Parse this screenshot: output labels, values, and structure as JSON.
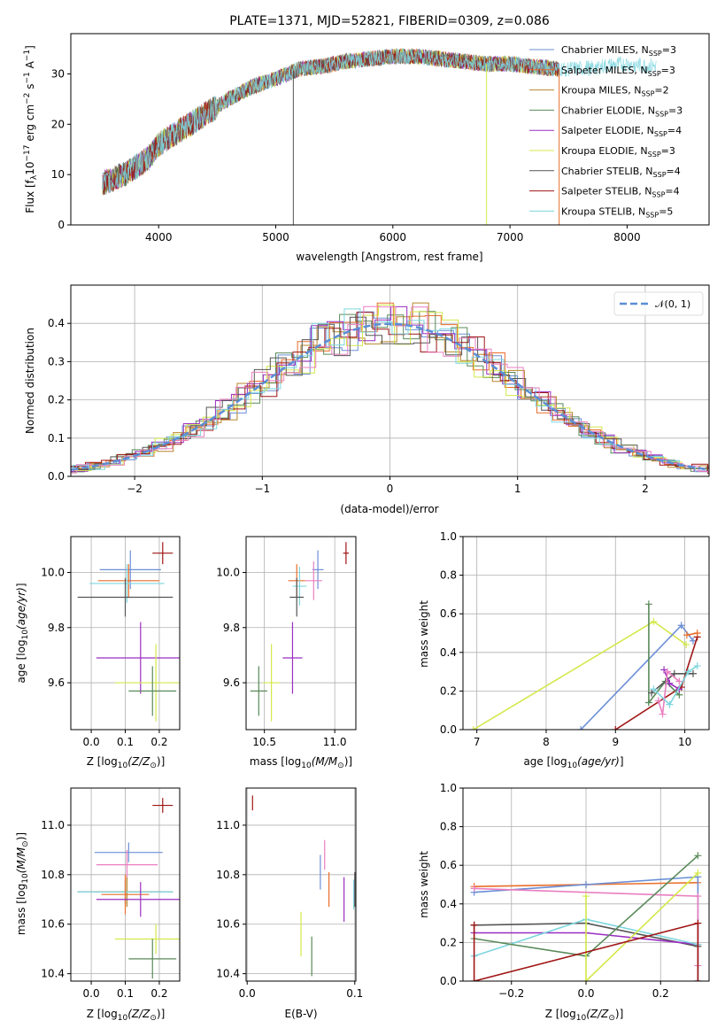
{
  "figure": {
    "title": "PLATE=1371, MJD=52821, FIBERID=0309, z=0.086"
  },
  "colors": {
    "Chabrier MILES": "#6b8fd6",
    "Salpeter MILES": "#e96e2a",
    "Kroupa MILES": "#b8862b",
    "Chabrier ELODIE": "#5a8a5a",
    "Salpeter ELODIE": "#9a2ec2",
    "Kroupa ELODIE": "#d4e84a",
    "Chabrier STELIB": "#555555",
    "Salpeter STELIB": "#a01515",
    "Kroupa STELIB": "#7ed6df",
    "pink": "#e97fc0",
    "gaussian": "#5b8ed6"
  },
  "chart_data": [
    {
      "id": "spectrum",
      "type": "line",
      "xlabel": "wavelength [Angstrom, rest frame]",
      "ylabel": "Flux [f",
      "xlim": [
        3250,
        8700
      ],
      "ylim": [
        0,
        38
      ],
      "xticks": [
        "4000",
        "5000",
        "6000",
        "7000",
        "8000"
      ],
      "yticks": [
        "0",
        "10",
        "20",
        "30"
      ],
      "legend_position": "right",
      "series": [
        {
          "name": "Chabrier MILES",
          "nssp": "3"
        },
        {
          "name": "Salpeter MILES",
          "nssp": "3"
        },
        {
          "name": "Kroupa MILES",
          "nssp": "2"
        },
        {
          "name": "Chabrier ELODIE",
          "nssp": "3"
        },
        {
          "name": "Salpeter ELODIE",
          "nssp": "4"
        },
        {
          "name": "Kroupa ELODIE",
          "nssp": "3"
        },
        {
          "name": "Chabrier STELIB",
          "nssp": "4"
        },
        {
          "name": "Salpeter STELIB",
          "nssp": "4"
        },
        {
          "name": "Kroupa STELIB",
          "nssp": "5"
        }
      ],
      "continuum": {
        "x": [
          3500,
          3700,
          3900,
          4000,
          4200,
          4400,
          4600,
          4800,
          5000,
          5200,
          5400,
          5600,
          5800,
          6000,
          6200,
          6400,
          6600,
          6800,
          7000,
          7200,
          7400,
          7600,
          7800,
          8000,
          8200
        ],
        "y": [
          8,
          10,
          13,
          16,
          19,
          22,
          25,
          27.5,
          29,
          31,
          31.5,
          32.5,
          33,
          33.5,
          33.5,
          33,
          32.5,
          32,
          32,
          31.5,
          31,
          31,
          31.5,
          32,
          31.5
        ]
      }
    },
    {
      "id": "residuals",
      "type": "line",
      "xlabel": "(data-model)/error",
      "ylabel": "Normed distribution",
      "xlim": [
        -2.5,
        2.5
      ],
      "ylim": [
        0,
        0.5
      ],
      "xticks": [
        "−2",
        "−1",
        "0",
        "1",
        "2"
      ],
      "yticks": [
        "0.0",
        "0.1",
        "0.2",
        "0.3",
        "0.4"
      ],
      "legend": "𝒩(0, 1)",
      "legend_position": "top-right",
      "grid": true
    },
    {
      "id": "age-vs-Z",
      "type": "scatter",
      "xlabel": "Z [log",
      "ylabel": "age  [log",
      "xlim": [
        -0.06,
        0.26
      ],
      "ylim": [
        9.43,
        10.13
      ],
      "xticks": [
        "0.0",
        "0.1",
        "0.2"
      ],
      "yticks": [
        "9.6",
        "9.8",
        "10.0"
      ],
      "grid": true,
      "points": [
        {
          "x": 0.115,
          "y": 10.01,
          "xerr": 0.09,
          "yerr": 0.07,
          "c": "Chabrier MILES"
        },
        {
          "x": 0.11,
          "y": 9.97,
          "xerr": 0.09,
          "yerr": 0.06,
          "c": "Salpeter MILES"
        },
        {
          "x": 0.105,
          "y": 9.96,
          "xerr": 0.11,
          "yerr": 0.07,
          "c": "Kroupa STELIB"
        },
        {
          "x": 0.1,
          "y": 9.91,
          "xerr": 0.14,
          "yerr": 0.07,
          "c": "Chabrier STELIB"
        },
        {
          "x": 0.145,
          "y": 9.69,
          "xerr": 0.13,
          "yerr": 0.13,
          "c": "Salpeter ELODIE"
        },
        {
          "x": 0.19,
          "y": 9.6,
          "xerr": 0.12,
          "yerr": 0.14,
          "c": "Kroupa ELODIE"
        },
        {
          "x": 0.18,
          "y": 9.57,
          "xerr": 0.07,
          "yerr": 0.09,
          "c": "Chabrier ELODIE"
        },
        {
          "x": 0.21,
          "y": 10.07,
          "xerr": 0.03,
          "yerr": 0.04,
          "c": "Salpeter STELIB"
        }
      ]
    },
    {
      "id": "age-vs-mass",
      "type": "scatter",
      "xlabel": "mass [log",
      "ylabel": "",
      "xlim": [
        10.37,
        11.15
      ],
      "ylim": [
        9.43,
        10.13
      ],
      "xticks": [
        "10.5",
        "11.0"
      ],
      "yticks": [
        "9.6",
        "9.8",
        "10.0"
      ],
      "grid": true,
      "points": [
        {
          "x": 10.88,
          "y": 10.01,
          "xerr": 0.04,
          "yerr": 0.07,
          "c": "Chabrier MILES"
        },
        {
          "x": 10.73,
          "y": 9.97,
          "xerr": 0.06,
          "yerr": 0.06,
          "c": "Salpeter MILES"
        },
        {
          "x": 10.85,
          "y": 9.97,
          "xerr": 0.06,
          "yerr": 0.07,
          "c": "pink"
        },
        {
          "x": 10.75,
          "y": 9.95,
          "xerr": 0.05,
          "yerr": 0.07,
          "c": "Kroupa STELIB"
        },
        {
          "x": 10.73,
          "y": 9.91,
          "xerr": 0.05,
          "yerr": 0.07,
          "c": "Chabrier STELIB"
        },
        {
          "x": 10.7,
          "y": 9.69,
          "xerr": 0.07,
          "yerr": 0.13,
          "c": "Salpeter ELODIE"
        },
        {
          "x": 10.55,
          "y": 9.6,
          "xerr": 0.06,
          "yerr": 0.14,
          "c": "Kroupa ELODIE"
        },
        {
          "x": 10.46,
          "y": 9.57,
          "xerr": 0.06,
          "yerr": 0.09,
          "c": "Chabrier ELODIE"
        },
        {
          "x": 11.08,
          "y": 10.07,
          "xerr": 0.02,
          "yerr": 0.04,
          "c": "Salpeter STELIB"
        }
      ]
    },
    {
      "id": "weight-vs-age",
      "type": "line",
      "xlabel": "age  [log",
      "ylabel": "mass weight",
      "xlim": [
        6.8,
        10.35
      ],
      "ylim": [
        0,
        1
      ],
      "xticks": [
        "7",
        "8",
        "9",
        "10"
      ],
      "yticks": [
        "0.0",
        "0.2",
        "0.4",
        "0.6",
        "0.8",
        "1.0"
      ],
      "grid": true,
      "series": [
        {
          "c": "Kroupa ELODIE",
          "x": [
            6.95,
            9.55,
            10.02
          ],
          "y": [
            0.0,
            0.56,
            0.44
          ]
        },
        {
          "c": "Chabrier MILES",
          "x": [
            8.5,
            9.95,
            10.12
          ],
          "y": [
            0.0,
            0.54,
            0.46
          ]
        },
        {
          "c": "Salpeter STELIB",
          "x": [
            9.0,
            9.95,
            10.18
          ],
          "y": [
            0.0,
            0.22,
            0.48
          ]
        },
        {
          "c": "Salpeter MILES",
          "x": [
            10.03,
            10.18
          ],
          "y": [
            0.49,
            0.5
          ]
        },
        {
          "c": "Chabrier ELODIE",
          "x": [
            9.48,
            9.48,
            9.72,
            9.92
          ],
          "y": [
            0.65,
            0.14,
            0.25,
            0.18
          ]
        },
        {
          "c": "Chabrier STELIB",
          "x": [
            9.52,
            9.85,
            10.12
          ],
          "y": [
            0.19,
            0.29,
            0.29
          ]
        },
        {
          "c": "Salpeter ELODIE",
          "x": [
            9.7,
            9.78,
            9.92
          ],
          "y": [
            0.31,
            0.24,
            0.21
          ]
        },
        {
          "c": "pink",
          "x": [
            9.62,
            9.68,
            9.75,
            9.92
          ],
          "y": [
            0.15,
            0.08,
            0.3,
            0.25
          ]
        },
        {
          "c": "Kroupa STELIB",
          "x": [
            9.55,
            9.78,
            10.05,
            10.18
          ],
          "y": [
            0.21,
            0.13,
            0.3,
            0.33
          ]
        }
      ]
    },
    {
      "id": "mass-vs-Z",
      "type": "scatter",
      "xlabel": "Z [log",
      "ylabel": "mass [log",
      "xlim": [
        -0.06,
        0.26
      ],
      "ylim": [
        10.37,
        11.15
      ],
      "xticks": [
        "0.0",
        "0.1",
        "0.2"
      ],
      "yticks": [
        "10.4",
        "10.6",
        "10.8",
        "11.0"
      ],
      "grid": true,
      "points": [
        {
          "x": 0.11,
          "y": 10.89,
          "xerr": 0.1,
          "yerr": 0.04,
          "c": "Chabrier MILES"
        },
        {
          "x": 0.105,
          "y": 10.84,
          "xerr": 0.09,
          "yerr": 0.06,
          "c": "pink"
        },
        {
          "x": 0.1,
          "y": 10.73,
          "xerr": 0.14,
          "yerr": 0.05,
          "c": "Chabrier STELIB"
        },
        {
          "x": 0.105,
          "y": 10.73,
          "xerr": 0.1,
          "yerr": 0.06,
          "c": "Kroupa MILES"
        },
        {
          "x": 0.1,
          "y": 10.73,
          "xerr": 0.14,
          "yerr": 0.05,
          "c": "Kroupa STELIB"
        },
        {
          "x": 0.1,
          "y": 10.72,
          "xerr": 0.07,
          "yerr": 0.08,
          "c": "Salpeter MILES"
        },
        {
          "x": 0.145,
          "y": 10.7,
          "xerr": 0.13,
          "yerr": 0.07,
          "c": "Salpeter ELODIE"
        },
        {
          "x": 0.19,
          "y": 10.54,
          "xerr": 0.12,
          "yerr": 0.06,
          "c": "Kroupa ELODIE"
        },
        {
          "x": 0.18,
          "y": 10.46,
          "xerr": 0.07,
          "yerr": 0.08,
          "c": "Chabrier ELODIE"
        },
        {
          "x": 0.21,
          "y": 11.08,
          "xerr": 0.03,
          "yerr": 0.03,
          "c": "Salpeter STELIB"
        }
      ]
    },
    {
      "id": "mass-vs-ebv",
      "type": "scatter",
      "xlabel": "E(B-V)",
      "ylabel": "",
      "xlim": [
        -0.001,
        0.101
      ],
      "ylim": [
        10.37,
        11.15
      ],
      "xticks": [
        "0.0",
        "0.1"
      ],
      "yticks": [
        "10.4",
        "10.6",
        "10.8",
        "11.0"
      ],
      "grid": true,
      "points": [
        {
          "x": 0.005,
          "y": 11.09,
          "xerr": 0.0,
          "yerr": 0.03,
          "c": "Salpeter STELIB"
        },
        {
          "x": 0.072,
          "y": 10.88,
          "xerr": 0.0,
          "yerr": 0.06,
          "c": "pink"
        },
        {
          "x": 0.068,
          "y": 10.81,
          "xerr": 0.0,
          "yerr": 0.07,
          "c": "Chabrier MILES"
        },
        {
          "x": 0.076,
          "y": 10.74,
          "xerr": 0.0,
          "yerr": 0.07,
          "c": "Salpeter MILES"
        },
        {
          "x": 0.099,
          "y": 10.72,
          "xerr": 0.0,
          "yerr": 0.06,
          "c": "Kroupa STELIB"
        },
        {
          "x": 0.1,
          "y": 10.74,
          "xerr": 0.0,
          "yerr": 0.07,
          "c": "Chabrier STELIB"
        },
        {
          "x": 0.09,
          "y": 10.7,
          "xerr": 0.0,
          "yerr": 0.09,
          "c": "Salpeter ELODIE"
        },
        {
          "x": 0.05,
          "y": 10.56,
          "xerr": 0.0,
          "yerr": 0.09,
          "c": "Kroupa ELODIE"
        },
        {
          "x": 0.06,
          "y": 10.47,
          "xerr": 0.0,
          "yerr": 0.08,
          "c": "Chabrier ELODIE"
        }
      ]
    },
    {
      "id": "weight-vs-Z",
      "type": "line",
      "xlabel": "Z [log",
      "ylabel": "mass weight",
      "xlim": [
        -0.33,
        0.33
      ],
      "ylim": [
        0,
        1
      ],
      "xticks": [
        "−0.2",
        "0.0",
        "0.2"
      ],
      "yticks": [
        "0.0",
        "0.2",
        "0.4",
        "0.6",
        "0.8",
        "1.0"
      ],
      "grid": true,
      "series": [
        {
          "c": "Salpeter MILES",
          "x": [
            -0.3,
            0.0,
            0.3
          ],
          "y": [
            0.49,
            0.5,
            0.51
          ]
        },
        {
          "c": "Chabrier MILES",
          "x": [
            -0.3,
            0.0,
            0.3,
            0.3
          ],
          "y": [
            0.46,
            0.5,
            0.54,
            0.0
          ]
        },
        {
          "c": "pink",
          "x": [
            -0.3,
            0.3,
            0.3
          ],
          "y": [
            0.48,
            0.44,
            0.08
          ]
        },
        {
          "c": "Chabrier STELIB",
          "x": [
            -0.3,
            0.0,
            0.3
          ],
          "y": [
            0.29,
            0.3,
            0.18
          ]
        },
        {
          "c": "Salpeter ELODIE",
          "x": [
            -0.3,
            0.0,
            0.3
          ],
          "y": [
            0.25,
            0.25,
            0.19
          ]
        },
        {
          "c": "Kroupa STELIB",
          "x": [
            -0.3,
            0.0,
            0.3
          ],
          "y": [
            0.13,
            0.32,
            0.19
          ]
        },
        {
          "c": "Chabrier ELODIE",
          "x": [
            -0.3,
            0.0,
            0.3
          ],
          "y": [
            0.22,
            0.13,
            0.65
          ]
        },
        {
          "c": "Kroupa ELODIE",
          "x": [
            0.0,
            0.0,
            0.3
          ],
          "y": [
            0.44,
            0.0,
            0.56
          ]
        },
        {
          "c": "Salpeter STELIB",
          "x": [
            -0.3,
            -0.3,
            0.3,
            0.3
          ],
          "y": [
            0.29,
            0.0,
            0.3,
            0.0
          ]
        }
      ]
    }
  ]
}
